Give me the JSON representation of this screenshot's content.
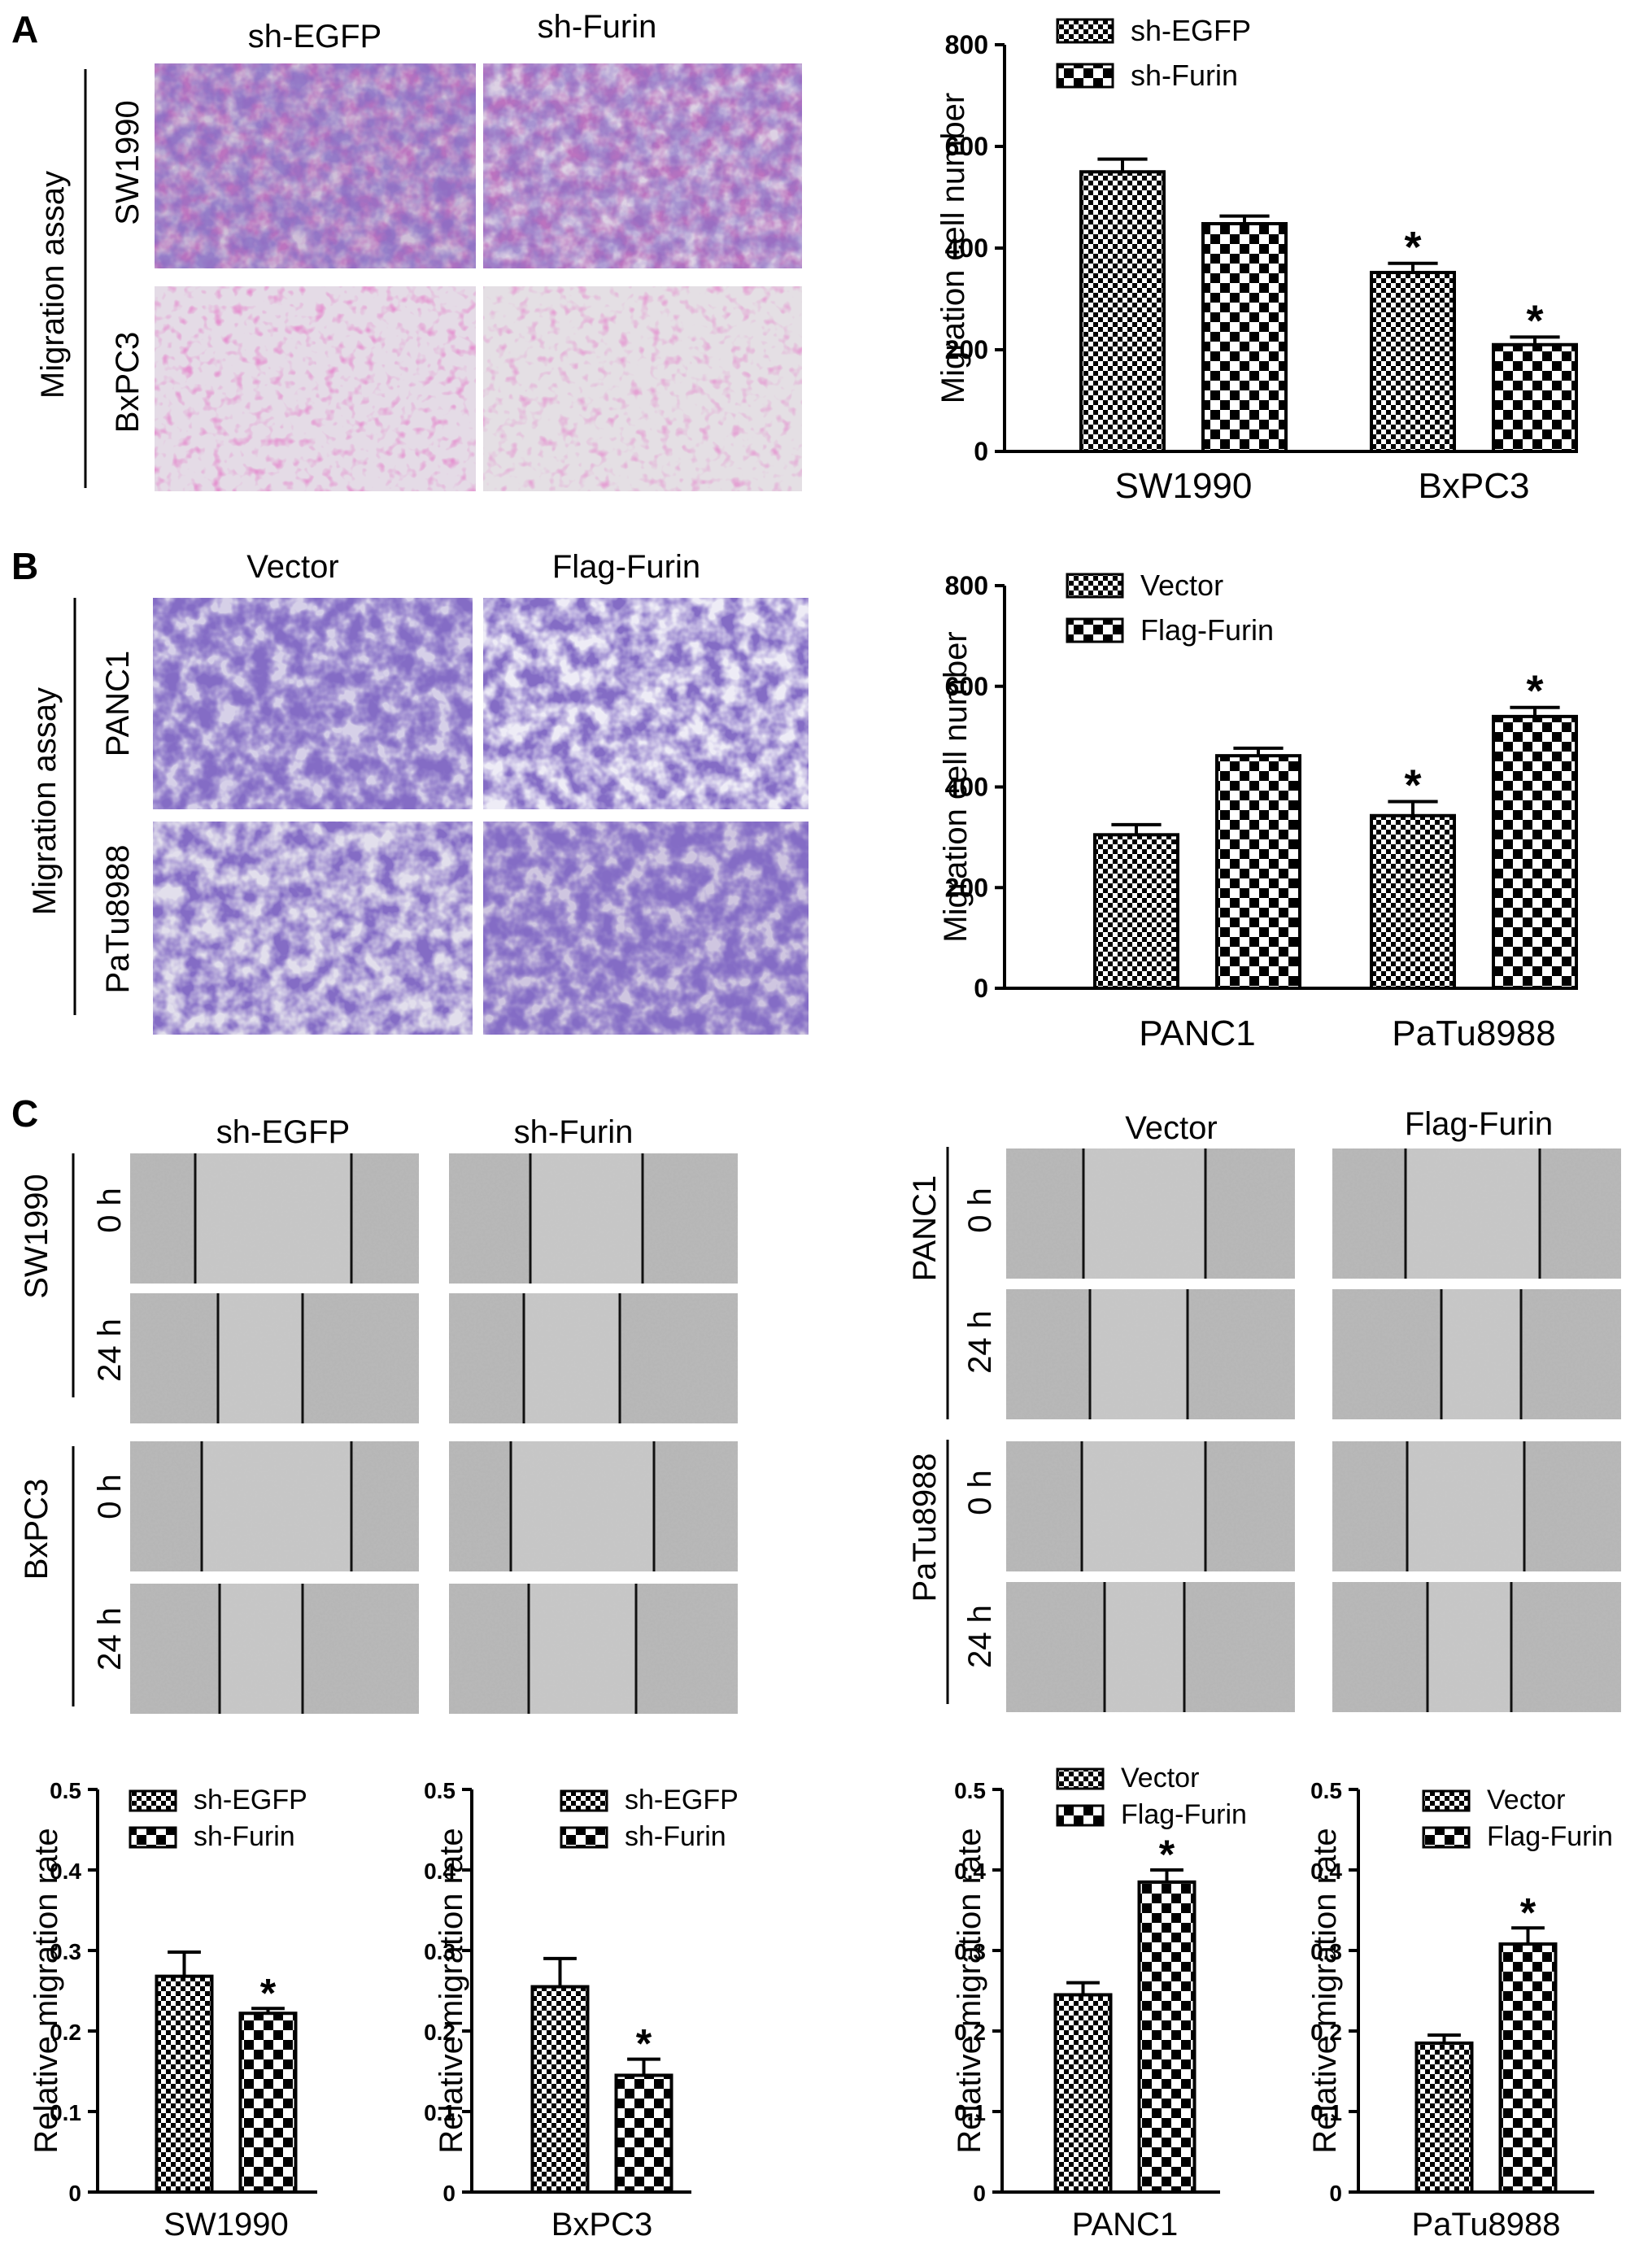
{
  "panels": {
    "A": {
      "letter": "A",
      "columns": [
        "sh-EGFP",
        "sh-Furin"
      ],
      "rows": [
        "SW1990",
        "BxPC3"
      ],
      "side_label": "Migration assay"
    },
    "B": {
      "letter": "B",
      "columns": [
        "Vector",
        "Flag-Furin"
      ],
      "rows": [
        "PANC1",
        "PaTu8988"
      ],
      "side_label": "Migration assay"
    },
    "C": {
      "letter": "C",
      "left": {
        "columns": [
          "sh-EGFP",
          "sh-Furin"
        ],
        "lines": [
          "SW1990",
          "BxPC3"
        ],
        "times": [
          "0 h",
          "24 h"
        ]
      },
      "right": {
        "columns": [
          "Vector",
          "Flag-Furin"
        ],
        "lines": [
          "PANC1",
          "PaTu8988"
        ],
        "times": [
          "0 h",
          "24 h"
        ]
      }
    }
  },
  "colors": {
    "stain_blue": "#3a2590",
    "stain_purple": "#8c2b86",
    "stain_pink": "#c74aa0",
    "wound_gray": "#b8b8b8"
  },
  "chart_data": [
    {
      "id": "A",
      "type": "bar",
      "ylabel": "Migration cell number",
      "ylim": [
        0,
        800
      ],
      "yticks": [
        0,
        200,
        400,
        600,
        800
      ],
      "categories": [
        "SW1990",
        "BxPC3"
      ],
      "series": [
        {
          "name": "sh-EGFP",
          "pattern": "small",
          "values": [
            550,
            352
          ],
          "errors": [
            25,
            18
          ]
        },
        {
          "name": "sh-Furin",
          "pattern": "large",
          "values": [
            448,
            210
          ],
          "errors": [
            15,
            15
          ]
        }
      ],
      "significance": [
        [
          false,
          true
        ],
        [
          false,
          true
        ]
      ]
    },
    {
      "id": "B",
      "type": "bar",
      "ylabel": "Migration cell number",
      "ylim": [
        0,
        800
      ],
      "yticks": [
        0,
        200,
        400,
        600,
        800
      ],
      "categories": [
        "PANC1",
        "PaTu8988"
      ],
      "series": [
        {
          "name": "Vector",
          "pattern": "small",
          "values": [
            305,
            343
          ],
          "errors": [
            20,
            28
          ]
        },
        {
          "name": "Flag-Furin",
          "pattern": "large",
          "values": [
            462,
            540
          ],
          "errors": [
            15,
            18
          ]
        }
      ],
      "significance": [
        [
          false,
          true
        ],
        [
          false,
          true
        ]
      ]
    },
    {
      "id": "C1",
      "type": "bar",
      "ylabel": "Relative migration rate",
      "ylim": [
        0,
        0.5
      ],
      "yticks": [
        0,
        0.1,
        0.2,
        0.3,
        0.4,
        0.5
      ],
      "categories": [
        "SW1990"
      ],
      "series": [
        {
          "name": "sh-EGFP",
          "pattern": "small",
          "values": [
            0.268
          ],
          "errors": [
            0.03
          ]
        },
        {
          "name": "sh-Furin",
          "pattern": "large",
          "values": [
            0.222
          ],
          "errors": [
            0.006
          ]
        }
      ],
      "significance": [
        [
          false
        ],
        [
          true
        ]
      ]
    },
    {
      "id": "C2",
      "type": "bar",
      "ylabel": "Relative migration rate",
      "ylim": [
        0,
        0.5
      ],
      "yticks": [
        0,
        0.1,
        0.2,
        0.3,
        0.4,
        0.5
      ],
      "categories": [
        "BxPC3"
      ],
      "series": [
        {
          "name": "sh-EGFP",
          "pattern": "small",
          "values": [
            0.255
          ],
          "errors": [
            0.035
          ]
        },
        {
          "name": "sh-Furin",
          "pattern": "large",
          "values": [
            0.145
          ],
          "errors": [
            0.02
          ]
        }
      ],
      "significance": [
        [
          false
        ],
        [
          true
        ]
      ]
    },
    {
      "id": "C3",
      "type": "bar",
      "ylabel": "Relative migration rate",
      "ylim": [
        0,
        0.5
      ],
      "yticks": [
        0,
        0.1,
        0.2,
        0.3,
        0.4,
        0.5
      ],
      "categories": [
        "PANC1"
      ],
      "series": [
        {
          "name": "Vector",
          "pattern": "small",
          "values": [
            0.245
          ],
          "errors": [
            0.015
          ]
        },
        {
          "name": "Flag-Furin",
          "pattern": "large",
          "values": [
            0.385
          ],
          "errors": [
            0.015
          ]
        }
      ],
      "significance": [
        [
          false
        ],
        [
          true
        ]
      ]
    },
    {
      "id": "C4",
      "type": "bar",
      "ylabel": "Relative migration rate",
      "ylim": [
        0,
        0.5
      ],
      "yticks": [
        0,
        0.1,
        0.2,
        0.3,
        0.4,
        0.5
      ],
      "categories": [
        "PaTu8988"
      ],
      "series": [
        {
          "name": "Vector",
          "pattern": "small",
          "values": [
            0.185
          ],
          "errors": [
            0.01
          ]
        },
        {
          "name": "Flag-Furin",
          "pattern": "large",
          "values": [
            0.308
          ],
          "errors": [
            0.02
          ]
        }
      ],
      "significance": [
        [
          false
        ],
        [
          true
        ]
      ]
    }
  ]
}
